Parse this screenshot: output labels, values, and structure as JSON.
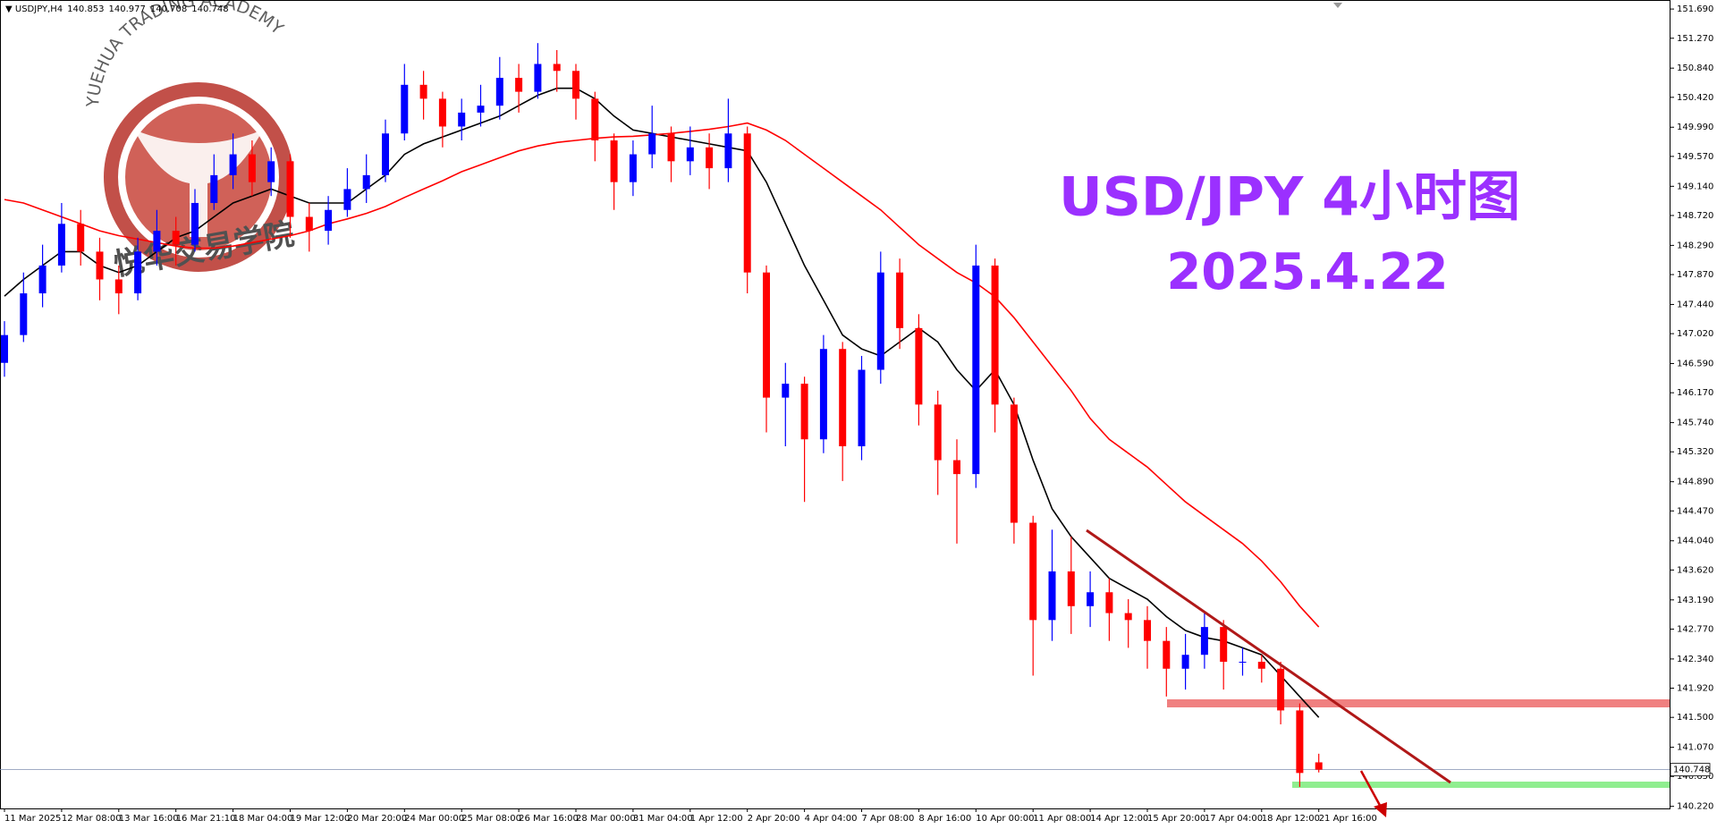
{
  "chart_data": {
    "type": "candlestick",
    "symbol": "USDJPY,H4",
    "title": "USD/JPY  4小时图",
    "subtitle": "2025.4.22",
    "watermark": {
      "text": "YUEHUA TRADING ACADEMY",
      "cn": "悦华交易学院"
    },
    "up_color": "#0000ff",
    "down_color": "#ff0000",
    "ylim": [
      140.19,
      151.82
    ],
    "yticks": [
      {
        "value": 151.69,
        "label": "151.690"
      },
      {
        "value": 151.27,
        "label": "151.270"
      },
      {
        "value": 150.84,
        "label": "150.840"
      },
      {
        "value": 150.42,
        "label": "150.420"
      },
      {
        "value": 149.99,
        "label": "149.990"
      },
      {
        "value": 149.57,
        "label": "149.570"
      },
      {
        "value": 149.14,
        "label": "149.140"
      },
      {
        "value": 148.72,
        "label": "148.720"
      },
      {
        "value": 148.29,
        "label": "148.290"
      },
      {
        "value": 147.87,
        "label": "147.870"
      },
      {
        "value": 147.44,
        "label": "147.440"
      },
      {
        "value": 147.02,
        "label": "147.020"
      },
      {
        "value": 146.59,
        "label": "146.590"
      },
      {
        "value": 146.17,
        "label": "146.170"
      },
      {
        "value": 145.74,
        "label": "145.740"
      },
      {
        "value": 145.32,
        "label": "145.320"
      },
      {
        "value": 144.89,
        "label": "144.890"
      },
      {
        "value": 144.47,
        "label": "144.470"
      },
      {
        "value": 144.04,
        "label": "144.040"
      },
      {
        "value": 143.62,
        "label": "143.620"
      },
      {
        "value": 143.19,
        "label": "143.190"
      },
      {
        "value": 142.77,
        "label": "142.770"
      },
      {
        "value": 142.34,
        "label": "142.340"
      },
      {
        "value": 141.92,
        "label": "141.920"
      },
      {
        "value": 141.5,
        "label": "141.500"
      },
      {
        "value": 141.07,
        "label": "141.070"
      },
      {
        "value": 140.65,
        "label": "140.650"
      },
      {
        "value": 140.22,
        "label": "140.220"
      }
    ],
    "x": [
      "11 Mar 2025",
      null,
      null,
      "12 Mar 08:00",
      null,
      null,
      "13 Mar 16:00",
      null,
      null,
      "16 Mar 21:10",
      null,
      null,
      "18 Mar 04:00",
      null,
      null,
      "19 Mar 12:00",
      null,
      null,
      "20 Mar 20:00",
      null,
      null,
      "24 Mar 00:00",
      null,
      null,
      "25 Mar 08:00",
      null,
      null,
      "26 Mar 16:00",
      null,
      null,
      "28 Mar 00:00",
      null,
      null,
      "31 Mar 04:00",
      null,
      null,
      "1 Apr 12:00",
      null,
      null,
      "2 Apr 20:00",
      null,
      null,
      "4 Apr 04:00",
      null,
      null,
      "7 Apr 08:00",
      null,
      null,
      "8 Apr 16:00",
      null,
      null,
      "10 Apr 00:00",
      null,
      null,
      "11 Apr 08:00",
      null,
      null,
      "14 Apr 12:00",
      null,
      null,
      "15 Apr 20:00",
      null,
      null,
      "17 Apr 04:00",
      null,
      null,
      "18 Apr 12:00",
      null,
      null,
      "21 Apr 16:00"
    ],
    "open": [
      146.6,
      147.0,
      147.6,
      148.0,
      148.6,
      148.2,
      147.8,
      147.6,
      148.2,
      148.5,
      148.3,
      148.9,
      149.3,
      149.6,
      149.2,
      149.5,
      148.7,
      148.5,
      148.8,
      149.1,
      149.3,
      149.9,
      150.6,
      150.4,
      150.0,
      150.2,
      150.3,
      150.7,
      150.5,
      150.9,
      150.8,
      150.4,
      149.8,
      149.2,
      149.6,
      149.9,
      149.5,
      149.7,
      149.4,
      149.9,
      147.9,
      146.1,
      146.3,
      145.5,
      146.8,
      145.4,
      146.5,
      147.9,
      147.1,
      146.0,
      145.2,
      145.0,
      148.0,
      146.0,
      144.3,
      142.9,
      143.6,
      143.1,
      143.3,
      143.0,
      142.9,
      142.6,
      142.2,
      142.4,
      142.8,
      142.3,
      142.3,
      142.2,
      141.6,
      140.853
    ],
    "high": [
      147.2,
      147.9,
      148.3,
      148.9,
      148.8,
      148.4,
      148.0,
      148.4,
      148.8,
      148.7,
      149.1,
      149.6,
      149.9,
      149.8,
      149.7,
      149.6,
      148.9,
      149.0,
      149.4,
      149.6,
      150.1,
      150.9,
      150.8,
      150.5,
      150.4,
      150.6,
      151.0,
      150.9,
      151.2,
      151.1,
      150.9,
      150.5,
      149.9,
      149.8,
      150.3,
      150.0,
      150.0,
      149.9,
      150.4,
      150.0,
      148.0,
      146.6,
      146.4,
      147.0,
      146.9,
      146.7,
      148.2,
      148.1,
      147.3,
      146.2,
      145.5,
      148.3,
      148.1,
      146.1,
      144.4,
      144.2,
      144.1,
      143.6,
      143.5,
      143.2,
      143.1,
      142.8,
      142.7,
      143.0,
      142.9,
      142.5,
      142.4,
      142.3,
      141.7,
      140.977
    ],
    "low": [
      146.4,
      146.9,
      147.4,
      147.9,
      148.0,
      147.5,
      147.3,
      147.5,
      148.0,
      148.0,
      148.2,
      148.8,
      149.1,
      149.0,
      149.0,
      148.4,
      148.2,
      148.3,
      148.7,
      148.9,
      149.2,
      149.8,
      150.1,
      149.7,
      149.8,
      150.0,
      150.1,
      150.2,
      150.4,
      150.5,
      150.1,
      149.5,
      148.8,
      149.0,
      149.4,
      149.2,
      149.3,
      149.1,
      149.2,
      147.6,
      145.6,
      145.4,
      144.6,
      145.3,
      144.9,
      145.2,
      146.3,
      146.8,
      145.7,
      144.7,
      144.0,
      144.8,
      145.6,
      144.0,
      142.1,
      142.6,
      142.7,
      142.8,
      142.6,
      142.5,
      142.2,
      141.8,
      141.9,
      142.2,
      141.9,
      142.1,
      142.0,
      141.4,
      140.5,
      140.708
    ],
    "close": [
      147.0,
      147.6,
      148.0,
      148.6,
      148.2,
      147.8,
      147.6,
      148.2,
      148.5,
      148.3,
      148.9,
      149.3,
      149.6,
      149.2,
      149.5,
      148.7,
      148.5,
      148.8,
      149.1,
      149.3,
      149.9,
      150.6,
      150.4,
      150.0,
      150.2,
      150.3,
      150.7,
      150.5,
      150.9,
      150.8,
      150.4,
      149.8,
      149.2,
      149.6,
      149.9,
      149.5,
      149.7,
      149.4,
      149.9,
      147.9,
      146.1,
      146.3,
      145.5,
      146.8,
      145.4,
      146.5,
      147.9,
      147.1,
      146.0,
      145.2,
      145.0,
      148.0,
      146.0,
      144.3,
      142.9,
      143.6,
      143.1,
      143.3,
      143.0,
      142.9,
      142.6,
      142.2,
      142.4,
      142.8,
      142.3,
      142.3,
      142.2,
      141.6,
      140.7,
      140.748
    ],
    "series": [
      {
        "color": "#000000",
        "values": [
          147.56,
          147.8,
          148.0,
          148.2,
          148.2,
          148.0,
          147.9,
          148.0,
          148.2,
          148.4,
          148.5,
          148.7,
          148.9,
          149.0,
          149.1,
          149.0,
          148.9,
          148.9,
          148.9,
          149.1,
          149.3,
          149.6,
          149.75,
          149.85,
          149.95,
          150.05,
          150.15,
          150.3,
          150.45,
          150.55,
          150.55,
          150.4,
          150.15,
          149.95,
          149.9,
          149.85,
          149.8,
          149.75,
          149.7,
          149.65,
          149.2,
          148.6,
          148.0,
          147.5,
          147.0,
          146.8,
          146.7,
          146.9,
          147.1,
          146.9,
          146.5,
          146.2,
          146.5,
          146.0,
          145.2,
          144.5,
          144.1,
          143.8,
          143.5,
          143.35,
          143.2,
          142.95,
          142.75,
          142.65,
          142.6,
          142.5,
          142.4,
          142.1,
          141.8,
          141.5
        ]
      },
      {
        "color": "#ff0000",
        "values": [
          148.95,
          148.9,
          148.8,
          148.7,
          148.6,
          148.5,
          148.43,
          148.38,
          148.33,
          148.28,
          148.25,
          148.25,
          148.28,
          148.33,
          148.38,
          148.43,
          148.5,
          148.6,
          148.67,
          148.75,
          148.85,
          148.98,
          149.1,
          149.22,
          149.35,
          149.45,
          149.55,
          149.65,
          149.72,
          149.77,
          149.8,
          149.83,
          149.85,
          149.86,
          149.88,
          149.9,
          149.93,
          149.96,
          150.0,
          150.05,
          149.95,
          149.8,
          149.6,
          149.4,
          149.2,
          149.0,
          148.8,
          148.55,
          148.3,
          148.1,
          147.9,
          147.75,
          147.55,
          147.25,
          146.9,
          146.55,
          146.2,
          145.8,
          145.5,
          145.3,
          145.1,
          144.85,
          144.6,
          144.4,
          144.2,
          144.0,
          143.75,
          143.45,
          143.1,
          142.8
        ]
      }
    ]
  }
}
